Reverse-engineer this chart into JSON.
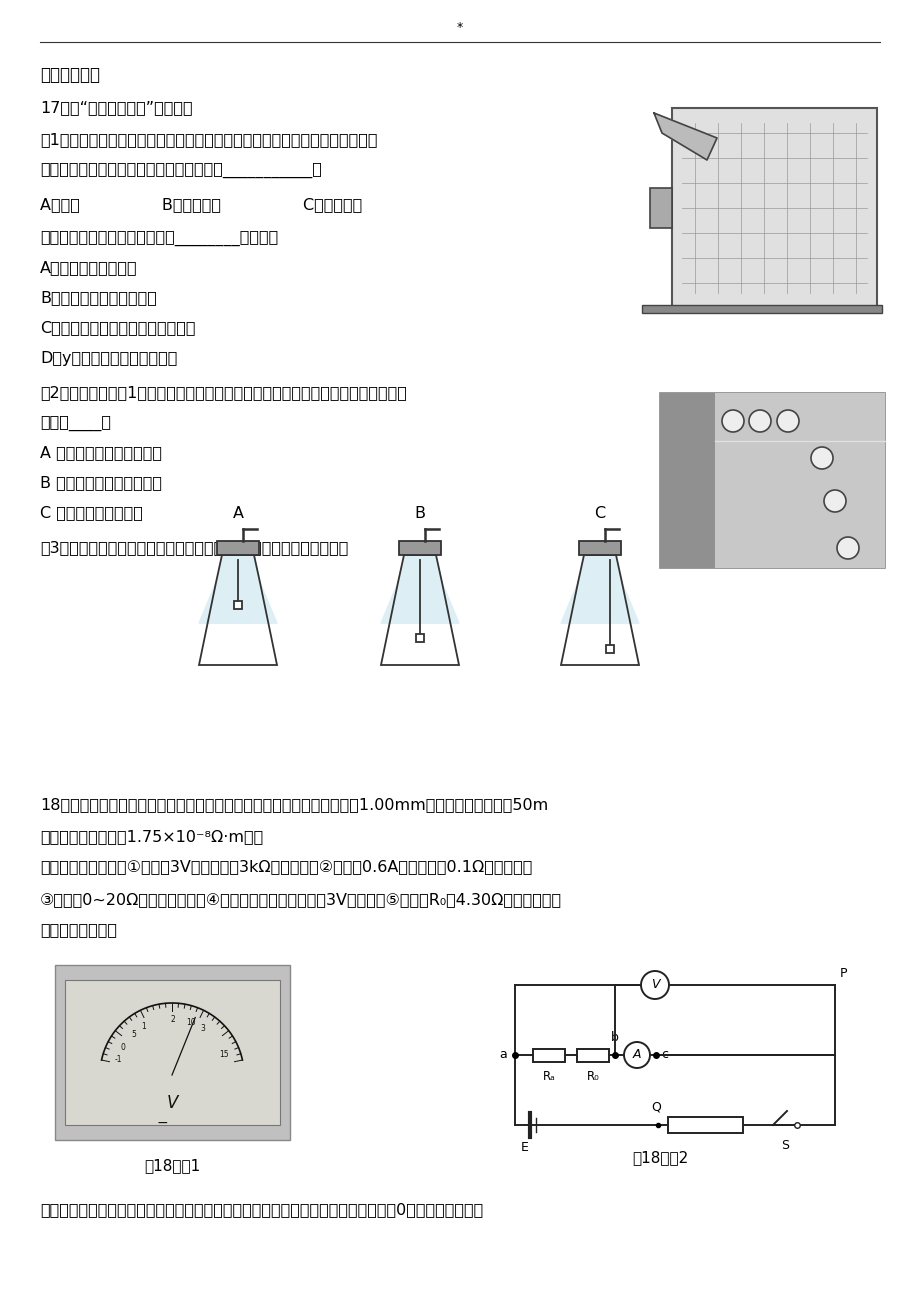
{
  "page_title": "*",
  "bg_color": "#ffffff",
  "text_color": "#000000",
  "section_header": "三、非选择题",
  "q17_header": "17．在“研究平抛运动”实验中，",
  "q17_1": "（1）图是横档条卡住平抛小球，用铅笔标注小球最高点，确定平抛运动轨迹的",
  "q17_1b": "方法，坐标原点应选小球在斜槽末端点时的___________。",
  "q17_1_opts": "A．球心                B．球的上端                C．球的下端",
  "q17_1_follow": "在此实验中，下列说法正确的是________（多选）",
  "q17_1_A": "A．斜槽轨道必须光滑",
  "q17_1_B": "B．记录的点应适当多一些",
  "q17_1_C": "C．用光滑曲线把所有的点连接起来",
  "q17_1_D": "D．y轴的方向根据重锤线确定",
  "q17_2": "（2）如图是利用图1装置拍摄小球做平抛运动的频闪照片，由照片可判断实验操作错",
  "q17_2b": "误的是____。",
  "q17_2_A": "A 释放小球时初速度不为零",
  "q17_2_B": "B 释放小球的初始位置不同",
  "q17_2_C": "C 斜槽末端切线不水平",
  "q17_3": "（3）如图是利用稳定的细水柱显示平抛运动轨迹的装置，其中正确的是",
  "q17_3_labels": [
    "A",
    "B",
    "C"
  ],
  "q18_header": "18．小明用电学方法测量电线的长度。首先，小明测得电线铜芯的直径为1.00mm，估计其长度不超过50m",
  "q18_1": "（已知铜的电阻率为1.75×10⁻⁸Ω·m）。",
  "q18_2": "现有如下实验器材：①量程为3V，内阻约为3kΩ的电压表；②量程为0.6A，内阻约为0.1Ω的电流表；",
  "q18_3": "③阻値为0~20Ω的滑动变阻器；④内阻可忽略，输出电压为3V的电源；⑤阻値为R₀＝4.30Ω的定値电阻，",
  "q18_4": "开关和导线若干。",
  "fig18_1_caption": "第18题图1",
  "fig18_2_caption": "第18题图2",
  "q18_last": "小明采用伏安法测量电线电阻，正确连接电路后，调节滑动变阻器，电流表的示数从0开始增加，当示数"
}
